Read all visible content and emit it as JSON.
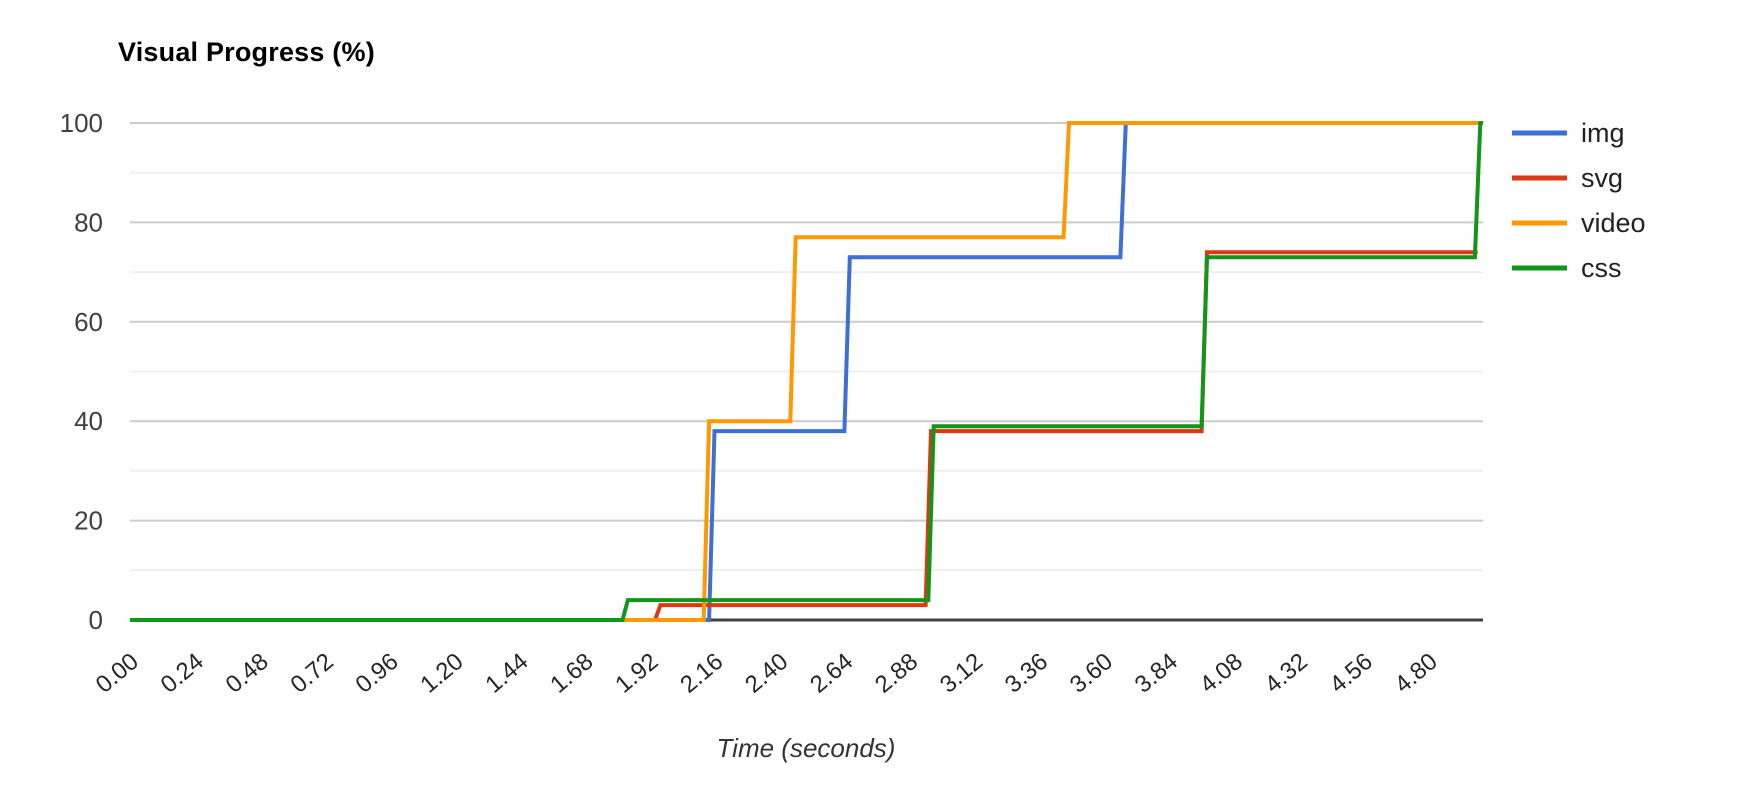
{
  "chart": {
    "title": "Visual Progress (%)",
    "x_axis_title": "Time (seconds)"
  },
  "chart_data": {
    "type": "line",
    "step_style": "step",
    "title": "Visual Progress (%)",
    "xlabel": "Time (seconds)",
    "ylabel": "Visual Progress (%)",
    "xlim": [
      0,
      5
    ],
    "ylim": [
      0,
      100
    ],
    "x_ticks": [
      "0.00",
      "0.24",
      "0.48",
      "0.72",
      "0.96",
      "1.20",
      "1.44",
      "1.68",
      "1.92",
      "2.16",
      "2.40",
      "2.64",
      "2.88",
      "3.12",
      "3.36",
      "3.60",
      "3.84",
      "4.08",
      "4.32",
      "4.56",
      "4.80"
    ],
    "y_ticks": [
      0,
      20,
      40,
      60,
      80,
      100
    ],
    "y_minor_ticks": [
      10,
      30,
      50,
      70,
      90
    ],
    "grid": true,
    "legend_position": "right",
    "colors": {
      "grid_major": "#cccccc",
      "grid_minor": "#efefef",
      "axis_line": "#424242"
    },
    "series": [
      {
        "name": "img",
        "color": "#3D6FD6",
        "points": [
          [
            0,
            0
          ],
          [
            2.14,
            0
          ],
          [
            2.16,
            38
          ],
          [
            2.64,
            38
          ],
          [
            2.66,
            73
          ],
          [
            3.66,
            73
          ],
          [
            3.68,
            100
          ],
          [
            5,
            100
          ]
        ]
      },
      {
        "name": "svg",
        "color": "#DC3912",
        "points": [
          [
            0,
            0
          ],
          [
            1.94,
            0
          ],
          [
            1.96,
            3
          ],
          [
            2.94,
            3
          ],
          [
            2.96,
            38
          ],
          [
            3.96,
            38
          ],
          [
            3.98,
            74
          ],
          [
            4.98,
            74
          ]
        ]
      },
      {
        "name": "video",
        "color": "#FF9900",
        "points": [
          [
            0,
            0
          ],
          [
            2.12,
            0
          ],
          [
            2.14,
            40
          ],
          [
            2.44,
            40
          ],
          [
            2.46,
            77
          ],
          [
            3.45,
            77
          ],
          [
            3.47,
            100
          ],
          [
            5,
            100
          ]
        ]
      },
      {
        "name": "css",
        "color": "#109618",
        "points": [
          [
            0,
            0
          ],
          [
            1.82,
            0
          ],
          [
            1.84,
            4
          ],
          [
            2.95,
            4
          ],
          [
            2.97,
            39
          ],
          [
            3.96,
            39
          ],
          [
            3.98,
            73
          ],
          [
            4.97,
            73
          ],
          [
            4.99,
            100
          ],
          [
            5,
            100
          ]
        ]
      }
    ]
  }
}
